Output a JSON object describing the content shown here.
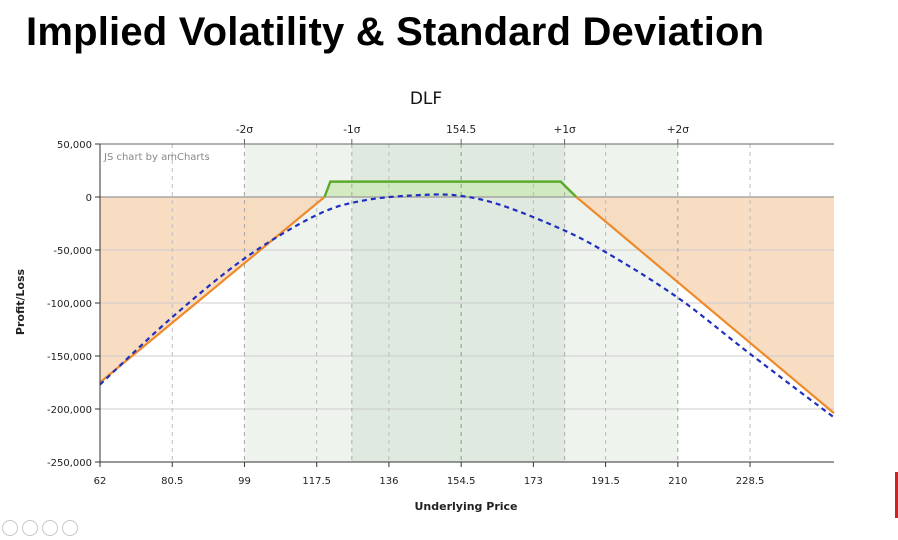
{
  "slide": {
    "title": "Implied Volatility & Standard Deviation"
  },
  "chart_data": {
    "type": "line",
    "title": "DLF",
    "credit": "JS chart by amCharts",
    "xlabel": "Underlying Price",
    "ylabel": "Profit/Loss",
    "xlim": [
      62,
      250
    ],
    "ylim": [
      -250000,
      50000
    ],
    "x_ticks": [
      62,
      80.5,
      99,
      117.5,
      136,
      154.5,
      173,
      191.5,
      210,
      228.5
    ],
    "y_ticks": [
      50000,
      0,
      -50000,
      -100000,
      -150000,
      -200000,
      -250000
    ],
    "y_tick_labels": [
      "50,000",
      "0",
      "-50,000",
      "-100,000",
      "-150,000",
      "-200,000",
      "-250,000"
    ],
    "sigma_markers": [
      {
        "label": "-2σ",
        "x": 99
      },
      {
        "label": "-1σ",
        "x": 126.5
      },
      {
        "label": "154.5",
        "x": 154.5
      },
      {
        "label": "+1σ",
        "x": 181
      },
      {
        "label": "+2σ",
        "x": 210
      }
    ],
    "bands": [
      {
        "from": 99,
        "to": 210,
        "color": "#eef3ee"
      },
      {
        "from": 126.5,
        "to": 181,
        "color": "#dfe9df"
      }
    ],
    "series": [
      {
        "style": "solid",
        "color_positive": "#5aab2c",
        "color_negative": "#ef8a2a",
        "x": [
          62,
          119.5,
          121,
          180,
          184,
          250
        ],
        "y": [
          -175000,
          0,
          14500,
          14500,
          0,
          -204000
        ]
      },
      {
        "style": "dashed",
        "color": "#1f2fbf",
        "x": [
          62,
          80,
          99,
          117.5,
          130,
          145,
          154.5,
          165,
          180,
          191.5,
          210,
          228.5,
          250
        ],
        "y": [
          -177000,
          -115000,
          -58000,
          -17000,
          -3000,
          2000,
          1000,
          -8000,
          -30000,
          -52000,
          -95000,
          -148000,
          -208000
        ]
      }
    ],
    "colors": {
      "loss_fill": "#f7d7b8",
      "gain_fill": "#cfe9be",
      "axis": "#333333",
      "grid": "#cccccc"
    }
  }
}
